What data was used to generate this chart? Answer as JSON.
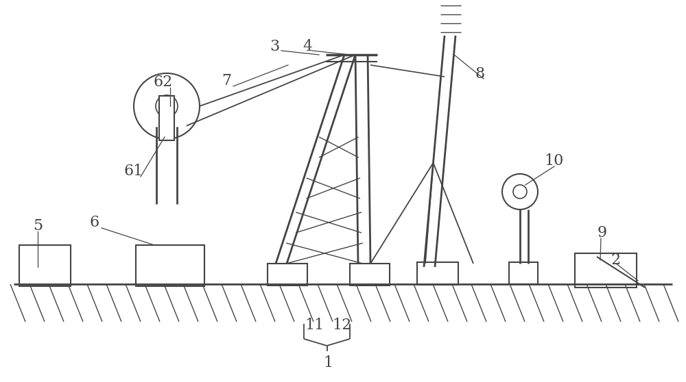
{
  "bg_color": "#ffffff",
  "line_color": "#444444",
  "figure_size": [
    10.0,
    5.58
  ],
  "dpi": 100
}
